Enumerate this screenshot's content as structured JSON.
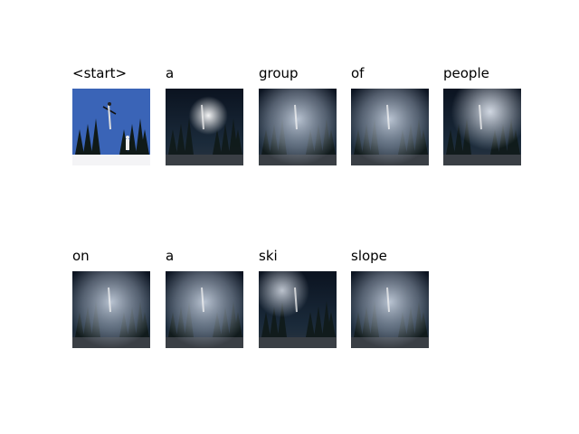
{
  "figure": {
    "words": [
      {
        "token": "<start>",
        "kind": "original"
      },
      {
        "token": "a",
        "kind": "attention",
        "focus": "center"
      },
      {
        "token": "group",
        "kind": "attention",
        "focus": "wide"
      },
      {
        "token": "of",
        "kind": "attention",
        "focus": "wide"
      },
      {
        "token": "people",
        "kind": "attention",
        "focus": "right"
      },
      {
        "token": "on",
        "kind": "attention",
        "focus": "wide"
      },
      {
        "token": "a",
        "kind": "attention",
        "focus": "wide"
      },
      {
        "token": "ski",
        "kind": "attention",
        "focus": "left"
      },
      {
        "token": "slope",
        "kind": "attention",
        "focus": "wide"
      }
    ],
    "colors": {
      "sky_blue": "#3a64b7",
      "dark_sky": "#0e1624",
      "snow": "#f4f4f6",
      "trees": "#101a18"
    }
  }
}
